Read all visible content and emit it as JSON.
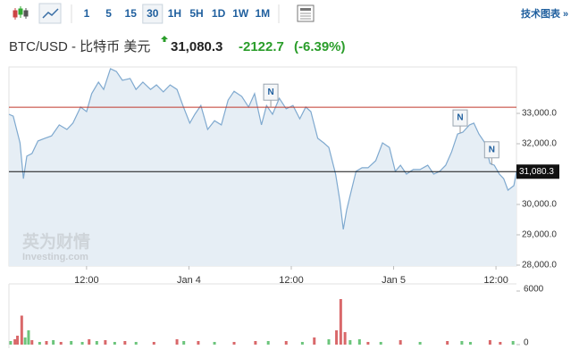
{
  "toolbar": {
    "intervals": [
      "1",
      "5",
      "15",
      "30",
      "1H",
      "5H",
      "1D",
      "1W",
      "1M"
    ],
    "active_interval": "30",
    "link": "技术图表 »"
  },
  "header": {
    "symbol": "BTC/USD - 比特币 美元",
    "change": "-2122.7",
    "change_pct": "(-6.39%)"
  },
  "watermark": [
    "英为财情",
    "Investing.com"
  ],
  "chart_data": [
    {
      "type": "area",
      "color": "#7fa9cf",
      "fill": "#e6eef5",
      "x": [
        2.9,
        3.4,
        4.2,
        4.6,
        5.0,
        5.6,
        6.3,
        7.1,
        7.9,
        8.8,
        9.7,
        10.4,
        11.3,
        12.0,
        12.6,
        13.4,
        14.0,
        14.8,
        15.5,
        16.2,
        17.1,
        17.8,
        18.6,
        19.5,
        20.2,
        21.0,
        21.8,
        22.6,
        23.3,
        24.1,
        24.7,
        25.4,
        26.2,
        27.0,
        27.8,
        28.6,
        29.3,
        30.2,
        31.0,
        31.7,
        32.5,
        33.1,
        33.8,
        34.6,
        35.4,
        36.2,
        37.0,
        37.7,
        38.3,
        39.1,
        39.8,
        40.4,
        41.2,
        41.7,
        42.1,
        42.5,
        43.0,
        43.6,
        44.3,
        45.0,
        45.9,
        46.7,
        47.5,
        48.2,
        48.8,
        49.5,
        50.3,
        51.1,
        52.0,
        52.7,
        53.4,
        54.1,
        54.8,
        55.5,
        56.1,
        56.9,
        57.4,
        58.0,
        58.7,
        59.3,
        59.8,
        60.4,
        60.9,
        61.4,
        62.1,
        62.4
      ],
      "values": [
        32970,
        32910,
        32030,
        30850,
        31590,
        31680,
        32090,
        32180,
        32260,
        32620,
        32470,
        32680,
        33210,
        33060,
        33650,
        34030,
        33790,
        34470,
        34380,
        34090,
        34150,
        33790,
        34030,
        33790,
        33940,
        33710,
        33940,
        33790,
        33260,
        32680,
        32970,
        33260,
        32470,
        32760,
        32620,
        33440,
        33730,
        33560,
        33210,
        33650,
        32620,
        33260,
        32970,
        33500,
        33150,
        33260,
        32820,
        33210,
        33060,
        32180,
        32030,
        31880,
        31000,
        30120,
        29180,
        29820,
        30410,
        31090,
        31210,
        31210,
        31440,
        32030,
        31880,
        31090,
        31290,
        31000,
        31150,
        31150,
        31290,
        31000,
        31090,
        31290,
        31730,
        32320,
        32380,
        32620,
        32680,
        32320,
        32030,
        31350,
        31290,
        31000,
        30850,
        30470,
        30620,
        31080.3
      ],
      "xlim": [
        2.9,
        62.4
      ],
      "xticks": [
        {
          "value": 12,
          "label": "12:00"
        },
        {
          "value": 24,
          "label": "Jan 4"
        },
        {
          "value": 36,
          "label": "12:00"
        },
        {
          "value": 48,
          "label": "Jan 5"
        },
        {
          "value": 60,
          "label": "12:00"
        }
      ],
      "ylim": [
        27970,
        34530
      ],
      "yticks": [
        {
          "value": 28000,
          "label": "28,000.0"
        },
        {
          "value": 29000,
          "label": "29,000.0"
        },
        {
          "value": 30000,
          "label": "30,000.0"
        },
        {
          "value": 32000,
          "label": "32,000.0"
        },
        {
          "value": 33000,
          "label": "33,000.0"
        }
      ],
      "previous_close": {
        "value": 33203,
        "color": "#c0392b"
      },
      "last_price": {
        "value": 31080.3,
        "label": "31,080.3",
        "color": "#111111"
      },
      "annotations": [
        {
          "label": "N",
          "x": 33.6,
          "y": 33200
        },
        {
          "label": "N",
          "x": 55.8,
          "y": 32350
        },
        {
          "label": "N",
          "x": 59.5,
          "y": 31300
        }
      ]
    },
    {
      "type": "bar",
      "x": [
        3.1,
        3.6,
        3.9,
        4.4,
        4.8,
        5.2,
        5.6,
        6.5,
        7.3,
        8.1,
        9.0,
        10.2,
        11.5,
        12.3,
        13.2,
        14.2,
        15.3,
        16.5,
        17.8,
        19.9,
        22.6,
        23.4,
        25.1,
        27.0,
        29.3,
        31.8,
        33.3,
        35.4,
        37.3,
        38.7,
        40.4,
        41.3,
        41.8,
        42.3,
        42.9,
        44.0,
        45.0,
        46.5,
        48.8,
        51.1,
        54.3,
        56.0,
        57.0,
        59.3,
        60.5,
        62.0
      ],
      "values": [
        400,
        600,
        1000,
        3250,
        800,
        1600,
        500,
        300,
        400,
        500,
        300,
        400,
        300,
        600,
        400,
        500,
        300,
        400,
        300,
        300,
        600,
        400,
        400,
        300,
        300,
        400,
        400,
        400,
        300,
        800,
        600,
        1600,
        5100,
        1400,
        500,
        600,
        300,
        300,
        500,
        300,
        400,
        400,
        300,
        500,
        300,
        400
      ],
      "colors": [
        "#6cc57c",
        "#d9686a",
        "#d9686a",
        "#d9686a",
        "#6cc57c",
        "#6cc57c",
        "#d9686a",
        "#6cc57c",
        "#d9686a",
        "#6cc57c",
        "#d9686a",
        "#6cc57c",
        "#6cc57c",
        "#d9686a",
        "#6cc57c",
        "#d9686a",
        "#6cc57c",
        "#d9686a",
        "#6cc57c",
        "#d9686a",
        "#d9686a",
        "#6cc57c",
        "#d9686a",
        "#6cc57c",
        "#d9686a",
        "#d9686a",
        "#6cc57c",
        "#d9686a",
        "#6cc57c",
        "#d9686a",
        "#6cc57c",
        "#d9686a",
        "#d9686a",
        "#d9686a",
        "#6cc57c",
        "#6cc57c",
        "#d9686a",
        "#6cc57c",
        "#d9686a",
        "#6cc57c",
        "#d9686a",
        "#6cc57c",
        "#6cc57c",
        "#d9686a",
        "#d9686a",
        "#6cc57c"
      ],
      "xlim": [
        2.9,
        62.4
      ],
      "ylim": [
        0,
        6000
      ],
      "yticks": [
        0,
        6000
      ]
    }
  ]
}
